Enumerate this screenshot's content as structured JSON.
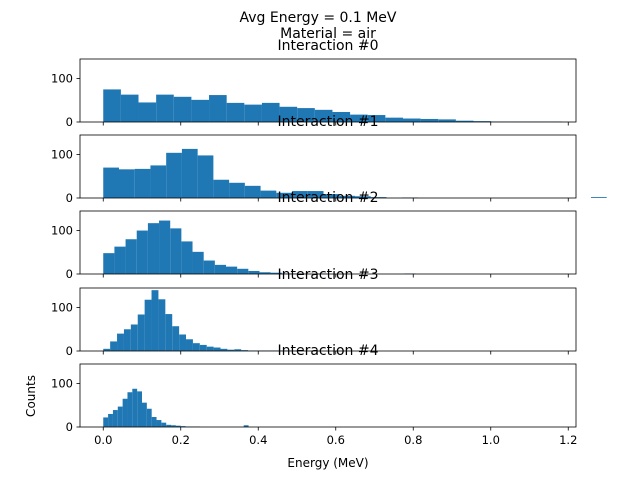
{
  "chart_data": {
    "type": "bar",
    "title": "Avg Energy = 0.1 MeV",
    "subtitle": "Material = air",
    "xlabel": "Energy (MeV)",
    "ylabel": "Counts",
    "xlim": [
      -0.06,
      1.22
    ],
    "ylim": [
      0,
      145
    ],
    "xticks": [
      "0.0",
      "0.2",
      "0.4",
      "0.6",
      "0.8",
      "1.0",
      "1.2"
    ],
    "yticks": [
      "0",
      "100"
    ],
    "bar_color": "#1f77b4",
    "grid": false,
    "panels": [
      {
        "title": "Interaction #0",
        "bin_start": 0.0,
        "bin_width": 0.0455,
        "values": [
          75,
          63,
          45,
          63,
          58,
          51,
          62,
          44,
          40,
          44,
          35,
          32,
          28,
          23,
          17,
          16,
          10,
          8,
          7,
          6,
          3,
          2,
          1,
          1,
          1,
          1
        ]
      },
      {
        "title": "Interaction #1",
        "bin_start": 0.0,
        "bin_width": 0.0406,
        "values": [
          70,
          66,
          67,
          75,
          104,
          113,
          98,
          42,
          35,
          28,
          17,
          12,
          16,
          16,
          9,
          5,
          4,
          2,
          0,
          1,
          0,
          0,
          0,
          0,
          0,
          0,
          0,
          0,
          0,
          0,
          0,
          2
        ]
      },
      {
        "title": "Interaction #2",
        "bin_start": 0.0,
        "bin_width": 0.0288,
        "values": [
          48,
          63,
          80,
          100,
          117,
          123,
          105,
          75,
          51,
          31,
          21,
          17,
          12,
          7,
          4,
          3,
          1,
          1,
          0,
          1,
          0,
          0,
          0,
          0,
          0,
          0,
          0,
          1
        ]
      },
      {
        "title": "Interaction #3",
        "bin_start": 0.0,
        "bin_width": 0.0178,
        "values": [
          5,
          22,
          40,
          50,
          61,
          84,
          118,
          140,
          119,
          85,
          57,
          38,
          27,
          18,
          14,
          10,
          8,
          5,
          3,
          4,
          2,
          1,
          1,
          1,
          1,
          1,
          1,
          1
        ]
      },
      {
        "title": "Interaction #4",
        "bin_start": 0.0,
        "bin_width": 0.0125,
        "values": [
          22,
          30,
          39,
          47,
          65,
          80,
          88,
          82,
          56,
          42,
          23,
          16,
          10,
          5,
          4,
          3,
          2,
          1,
          1,
          1,
          0,
          0,
          0,
          0,
          0,
          0,
          0,
          0,
          0,
          4
        ]
      }
    ]
  }
}
